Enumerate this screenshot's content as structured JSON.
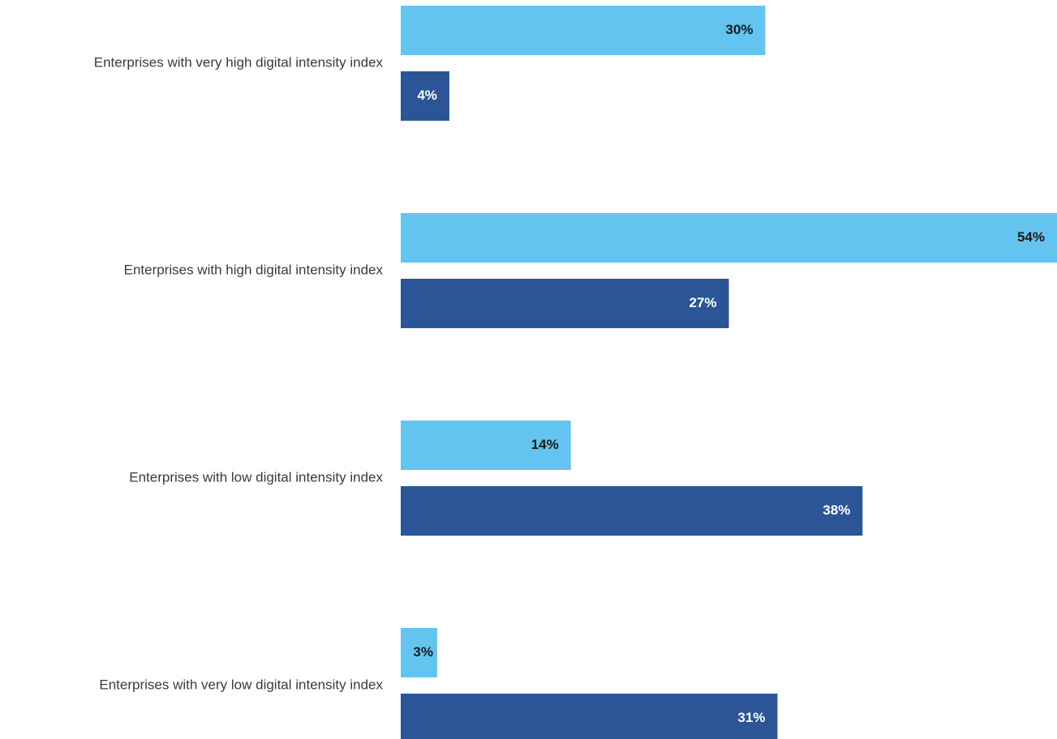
{
  "chart_data": {
    "type": "bar",
    "orientation": "horizontal",
    "categories": [
      "Enterprises with very high digital intensity index",
      "Enterprises with high digital intensity index",
      "Enterprises with low digital intensity index",
      "Enterprises with very low digital intensity index"
    ],
    "series": [
      {
        "values": [
          30,
          54,
          14,
          3
        ],
        "labels": [
          "30%",
          "54%",
          "14%",
          "3%"
        ],
        "color": "#63C4EF",
        "label_color": "#1a1a1a"
      },
      {
        "values": [
          4,
          27,
          38,
          31
        ],
        "labels": [
          "4%",
          "27%",
          "38%",
          "31%"
        ],
        "color": "#2B5596",
        "label_color": "#ffffff"
      }
    ],
    "xlim": [
      0,
      54
    ],
    "value_unit": "%",
    "grid": false,
    "legend": "none"
  }
}
